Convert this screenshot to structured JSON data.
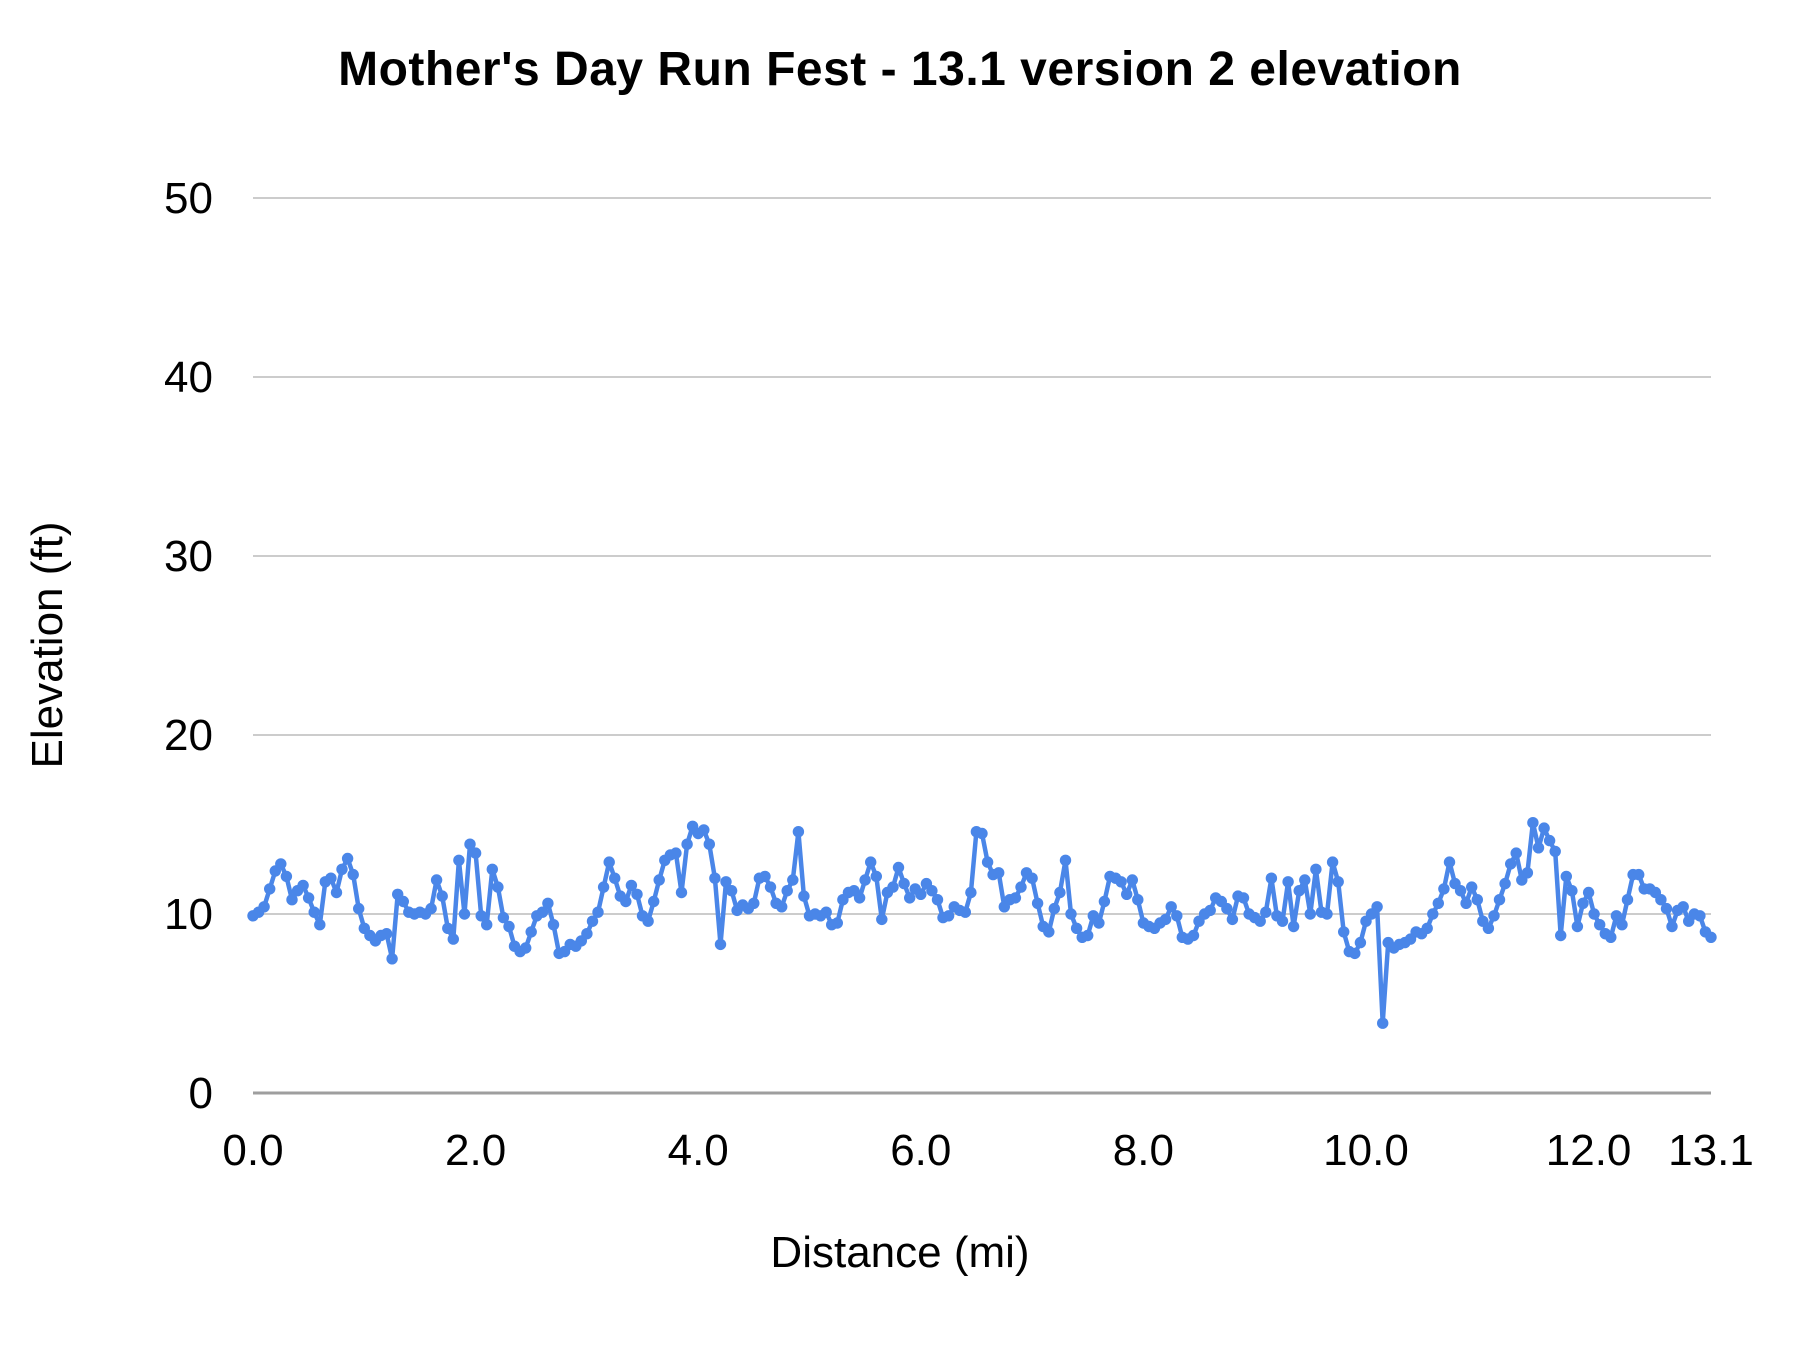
{
  "page": {
    "background": "#ffffff"
  },
  "chart_data": {
    "type": "line",
    "title": "Mother's Day Run Fest - 13.1 version 2 elevation",
    "xlabel": "Distance (mi)",
    "ylabel": "Elevation (ft)",
    "xlim": [
      0,
      13.1
    ],
    "ylim": [
      0,
      50
    ],
    "yticks": [
      0,
      10,
      20,
      30,
      40,
      50
    ],
    "xticks": [
      {
        "value": 0,
        "label": "0.0"
      },
      {
        "value": 2,
        "label": "2.0"
      },
      {
        "value": 4,
        "label": "4.0"
      },
      {
        "value": 6,
        "label": "6.0"
      },
      {
        "value": 8,
        "label": "8.0"
      },
      {
        "value": 10,
        "label": "10.0"
      },
      {
        "value": 12,
        "label": "12.0"
      },
      {
        "value": 13.1,
        "label": "13.1"
      }
    ],
    "grid": "horizontal",
    "legend": "none",
    "colors": {
      "series": "#4a86e8",
      "gridline": "#cccccc",
      "axisline": "#9e9e9e",
      "text": "#000000",
      "background": "#ffffff"
    },
    "marker": "circle",
    "series": [
      {
        "name": "elevation",
        "x_start": 0,
        "x_step": 0.05,
        "x_end": 13.1,
        "values": [
          9.9,
          10.1,
          10.4,
          11.4,
          12.4,
          12.8,
          12.1,
          10.8,
          11.3,
          11.6,
          10.9,
          10.1,
          9.4,
          11.8,
          12.0,
          11.2,
          12.5,
          13.1,
          12.2,
          10.3,
          9.2,
          8.8,
          8.5,
          8.8,
          8.9,
          7.5,
          11.1,
          10.7,
          10.1,
          10.0,
          10.1,
          10.0,
          10.3,
          11.9,
          11.0,
          9.2,
          8.6,
          13.0,
          10.0,
          13.9,
          13.4,
          9.9,
          9.4,
          12.5,
          11.5,
          9.8,
          9.3,
          8.2,
          7.9,
          8.1,
          9.0,
          9.9,
          10.1,
          10.6,
          9.4,
          7.8,
          7.9,
          8.3,
          8.2,
          8.5,
          8.9,
          9.6,
          10.1,
          11.5,
          12.9,
          12.0,
          11.0,
          10.7,
          11.6,
          11.1,
          9.9,
          9.6,
          10.7,
          11.9,
          13.0,
          13.3,
          13.4,
          11.2,
          13.9,
          14.9,
          14.5,
          14.7,
          13.9,
          12.0,
          8.3,
          11.8,
          11.3,
          10.2,
          10.5,
          10.3,
          10.6,
          12.0,
          12.1,
          11.5,
          10.6,
          10.4,
          11.3,
          11.9,
          14.6,
          11.0,
          9.9,
          10.0,
          9.9,
          10.1,
          9.4,
          9.5,
          10.8,
          11.2,
          11.3,
          10.9,
          11.9,
          12.9,
          12.1,
          9.7,
          11.2,
          11.5,
          12.6,
          11.7,
          10.9,
          11.4,
          11.1,
          11.7,
          11.3,
          10.8,
          9.8,
          9.9,
          10.4,
          10.2,
          10.1,
          11.2,
          14.6,
          14.5,
          12.9,
          12.2,
          12.3,
          10.4,
          10.8,
          10.9,
          11.5,
          12.3,
          12.0,
          10.6,
          9.3,
          9.0,
          10.3,
          11.2,
          13.0,
          10.0,
          9.2,
          8.7,
          8.8,
          9.9,
          9.5,
          10.7,
          12.1,
          12.0,
          11.8,
          11.1,
          11.9,
          10.8,
          9.5,
          9.3,
          9.2,
          9.5,
          9.7,
          10.4,
          9.9,
          8.7,
          8.6,
          8.8,
          9.6,
          10.0,
          10.2,
          10.9,
          10.7,
          10.3,
          9.7,
          11.0,
          10.9,
          10.0,
          9.8,
          9.6,
          10.1,
          12.0,
          9.9,
          9.6,
          11.8,
          9.3,
          11.3,
          11.9,
          10.0,
          12.5,
          10.1,
          10.0,
          12.9,
          11.8,
          9.0,
          7.9,
          7.8,
          8.4,
          9.6,
          10.0,
          10.4,
          3.9,
          8.4,
          8.1,
          8.3,
          8.4,
          8.6,
          9.0,
          8.9,
          9.2,
          10.0,
          10.6,
          11.4,
          12.9,
          11.7,
          11.3,
          10.6,
          11.5,
          10.8,
          9.6,
          9.2,
          9.9,
          10.8,
          11.7,
          12.8,
          13.4,
          11.9,
          12.3,
          15.1,
          13.7,
          14.8,
          14.1,
          13.5,
          8.8,
          12.1,
          11.3,
          9.3,
          10.6,
          11.2,
          10.0,
          9.4,
          8.9,
          8.7,
          9.9,
          9.4,
          10.8,
          12.2,
          12.2,
          11.4,
          11.4,
          11.2,
          10.8,
          10.3,
          9.3,
          10.2,
          10.4,
          9.6,
          10.0,
          9.9,
          9.0,
          8.7
        ]
      }
    ]
  }
}
